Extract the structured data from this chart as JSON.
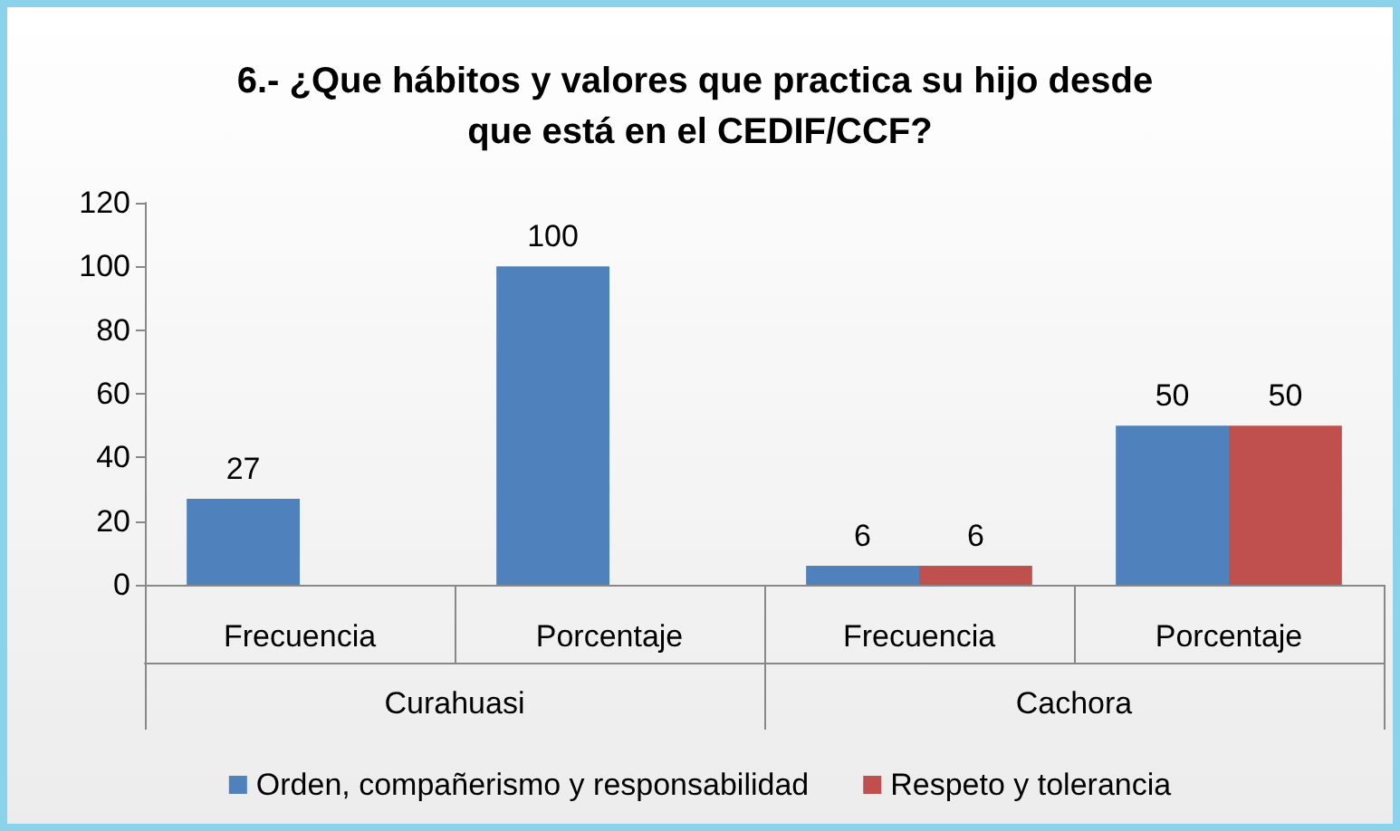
{
  "chart_data": {
    "type": "bar",
    "title": "6.- ¿Que hábitos y valores que practica su hijo desde que está en el CEDIF/CCF?",
    "categories": [
      "Frecuencia",
      "Porcentaje",
      "Frecuencia",
      "Porcentaje"
    ],
    "annotations": [
      "Curahuasi",
      "Cachora"
    ],
    "series": [
      {
        "name": "Orden, compañerismo y responsabilidad",
        "color": "#4f81bd",
        "values": [
          27,
          100,
          6,
          50
        ]
      },
      {
        "name": "Respeto y tolerancia",
        "color": "#c0504d",
        "values": [
          null,
          null,
          6,
          50
        ]
      }
    ],
    "ylim": [
      0,
      120
    ],
    "yticks": [
      0,
      20,
      40,
      60,
      80,
      100,
      120
    ],
    "grid": false,
    "data_labels": true,
    "legend": "bottom"
  }
}
